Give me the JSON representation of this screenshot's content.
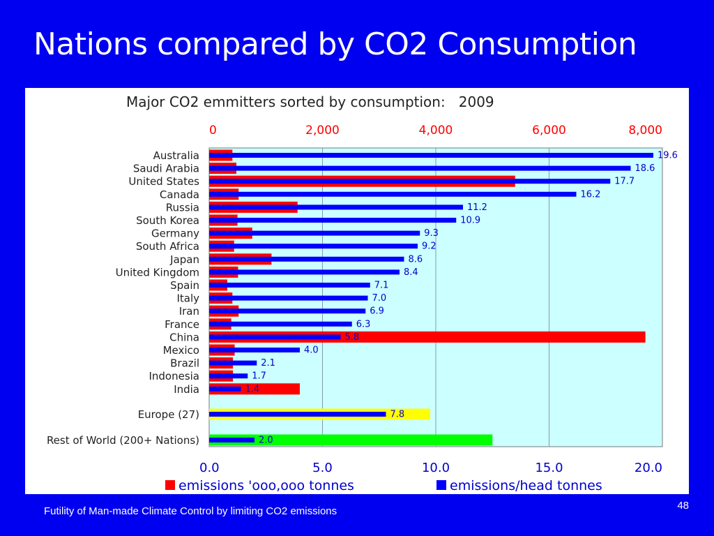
{
  "slide": {
    "title": "Nations compared by CO2 Consumption",
    "footer": "Futility of Man-made Climate Control by limiting CO2 emissions",
    "page_number": "48"
  },
  "colors": {
    "background": "#0000f0",
    "plot_area": "#ccffff",
    "emissions": "#ff0000",
    "per_head": "#0000ff",
    "europe_total": "#ffff00",
    "rest_of_world_total": "#00ff00"
  },
  "chart_data": {
    "type": "bar",
    "orientation": "horizontal",
    "title": "Major CO2 emmitters sorted by consumption:   2009",
    "categories": [
      "Australia",
      "Saudi Arabia",
      "United States",
      "Canada",
      "Russia",
      "South Korea",
      "Germany",
      "South Africa",
      "Japan",
      "United Kingdom",
      "Spain",
      "Italy",
      "Iran",
      "France",
      "China",
      "Mexico",
      "Brazil",
      "Indonesia",
      "India",
      "Europe (27)",
      "Rest of World (200+ Nations)"
    ],
    "series": [
      {
        "name": "emissions 'ooo,ooo tonnes",
        "axis": "top",
        "color": "#ff0000",
        "point_colors": {
          "Europe (27)": "#ffff00",
          "Rest of World (200+ Nations)": "#00ff00"
        },
        "values": [
          410,
          480,
          5400,
          520,
          1560,
          500,
          760,
          440,
          1100,
          510,
          320,
          410,
          520,
          390,
          7700,
          450,
          420,
          420,
          1600,
          3900,
          5000
        ]
      },
      {
        "name": "emissions/head tonnes",
        "axis": "bottom",
        "color": "#0000ff",
        "values": [
          19.6,
          18.6,
          17.7,
          16.2,
          11.2,
          10.9,
          9.3,
          9.2,
          8.6,
          8.4,
          7.1,
          7.0,
          6.9,
          6.3,
          5.8,
          4.0,
          2.1,
          1.7,
          1.4,
          7.8,
          2.0
        ],
        "labels": [
          "19.6",
          "18.6",
          "17.7",
          "16.2",
          "11.2",
          "10.9",
          "9.3",
          "9.2",
          "8.6",
          "8.4",
          "7.1",
          "7.0",
          "6.9",
          "6.3",
          "5.8",
          "4.0",
          "2.1",
          "1.7",
          "1.4",
          "7.8",
          "2.0"
        ]
      }
    ],
    "x_top": {
      "range": [
        0,
        8000
      ],
      "ticks": [
        0,
        2000,
        4000,
        6000,
        8000
      ],
      "tick_labels": [
        "0",
        "2,000",
        "4,000",
        "6,000",
        "8,000"
      ]
    },
    "x_bottom": {
      "range": [
        0,
        20
      ],
      "ticks": [
        0,
        5,
        10,
        15,
        20
      ],
      "tick_labels": [
        "0.0",
        "5.0",
        "10.0",
        "15.0",
        "20.0"
      ]
    },
    "gridlines": true,
    "legend": {
      "position": "bottom",
      "items": [
        "emissions 'ooo,ooo tonnes",
        "emissions/head tonnes"
      ]
    }
  }
}
